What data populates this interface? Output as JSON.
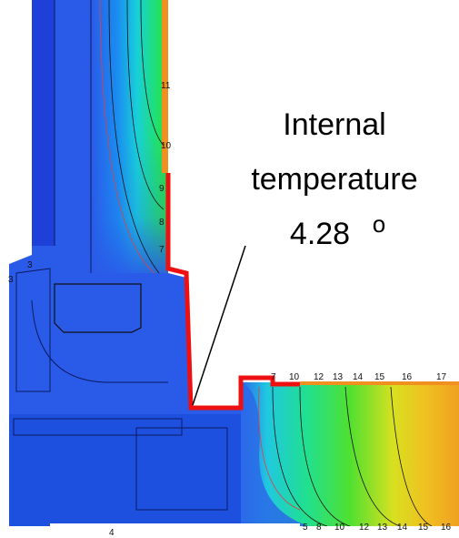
{
  "annotation": {
    "lines": [
      "Internal",
      "temperature",
      "4.28"
    ],
    "degree_mark": "o"
  },
  "isotherm_labels": {
    "wall_vertical": [
      "11",
      "10",
      "9",
      "8",
      "7"
    ],
    "frame_left": [
      "3",
      "3"
    ],
    "wall_horizontal_top": [
      "7",
      "10",
      "12",
      "13",
      "14",
      "15",
      "16",
      "17"
    ],
    "wall_horizontal_bottom": [
      "5",
      "8",
      "10",
      "12",
      "13",
      "14",
      "15",
      "16"
    ],
    "frame_bottom": [
      "4"
    ]
  }
}
